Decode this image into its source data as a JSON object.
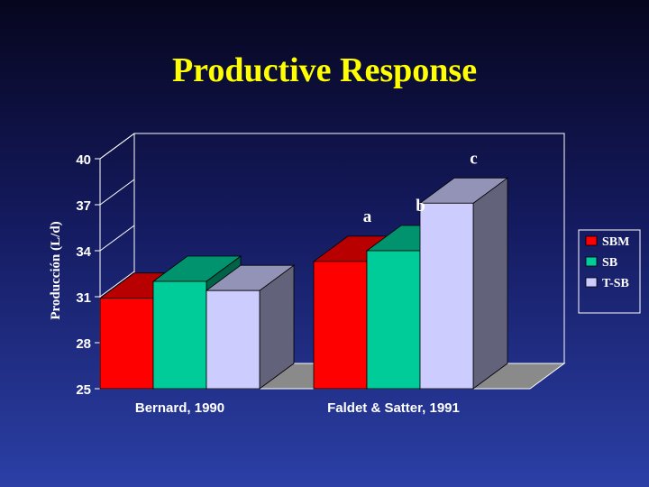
{
  "chart_data": {
    "type": "bar",
    "title": "Productive Response",
    "ylabel": "Producción (L/d)",
    "xlabel": "",
    "categories": [
      "Bernard, 1990",
      "Faldet & Satter, 1991"
    ],
    "series": [
      {
        "name": "SBM",
        "color": "#ff0000",
        "values": [
          30.9,
          33.3
        ]
      },
      {
        "name": "SB",
        "color": "#00cc99",
        "values": [
          32.0,
          34.0
        ]
      },
      {
        "name": "T-SB",
        "color": "#ccccff",
        "values": [
          31.4,
          37.1
        ]
      }
    ],
    "yticks": [
      25,
      28,
      31,
      34,
      37,
      40
    ],
    "ylim": [
      25,
      40
    ],
    "annotations": [
      {
        "text": "a",
        "category": 1,
        "series": 0
      },
      {
        "text": "b",
        "category": 1,
        "series": 1
      },
      {
        "text": "c",
        "category": 1,
        "series": 2
      }
    ],
    "legend": "right",
    "grid": false
  }
}
